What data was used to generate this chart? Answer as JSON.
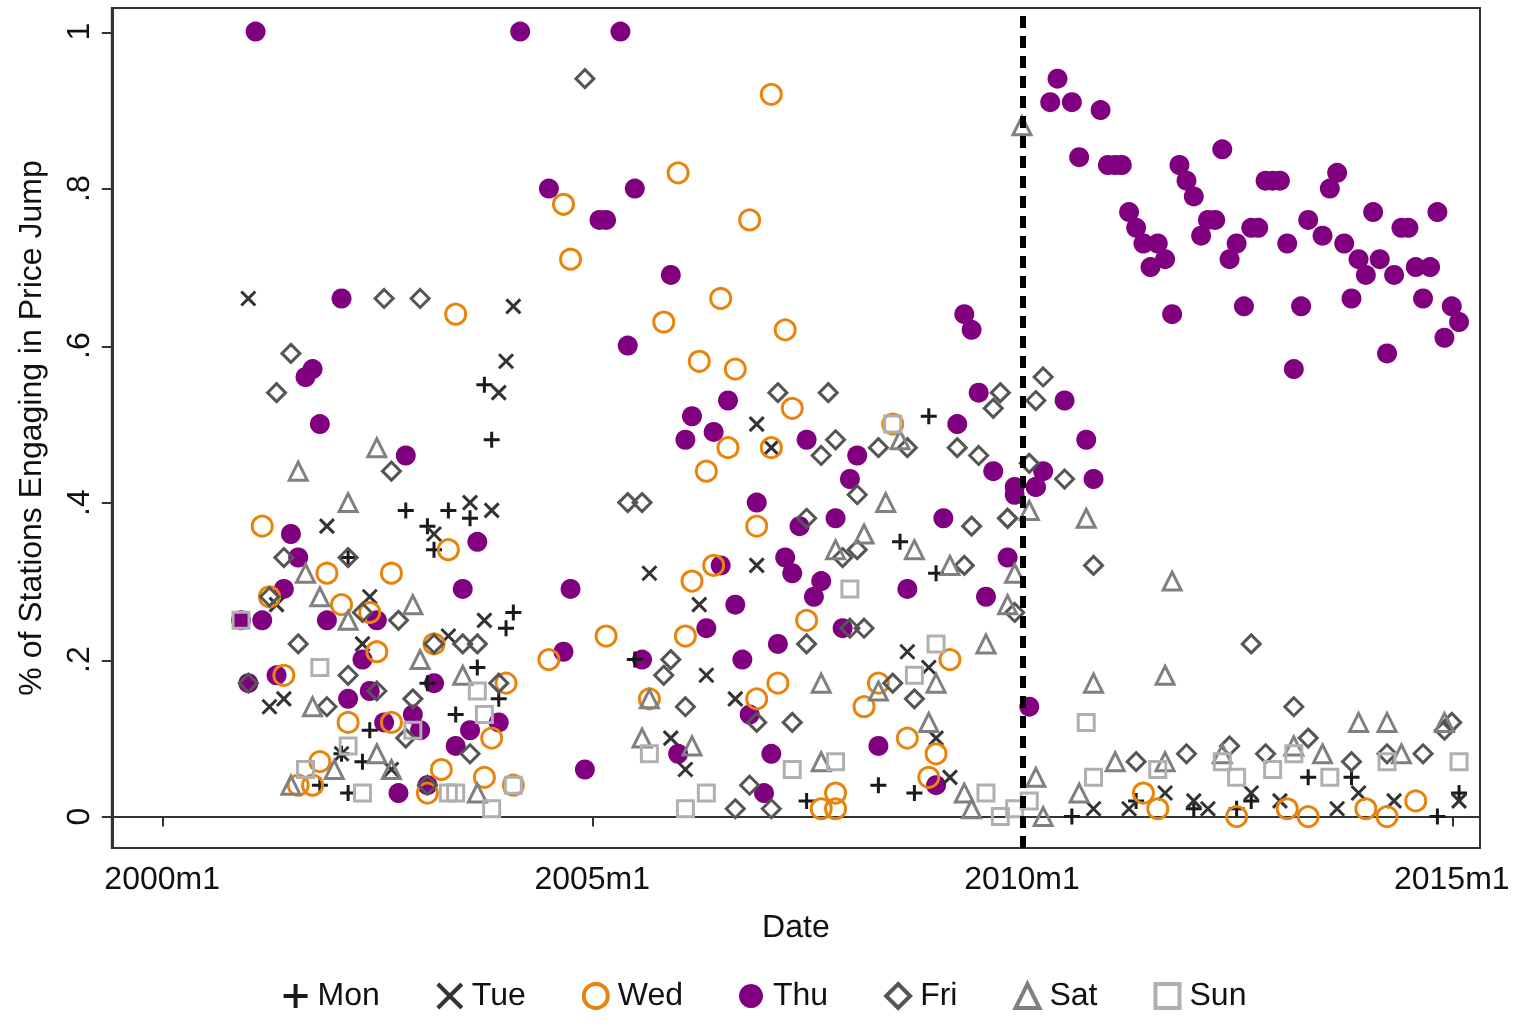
{
  "chart_data": {
    "type": "scatter",
    "xlabel": "Date",
    "ylabel": "% of Stations Engaging in Price Jump",
    "xlim": [
      "1999-06",
      "2015-05"
    ],
    "ylim": [
      -0.04,
      1.03
    ],
    "xticks": [
      {
        "value": "2000-01",
        "label": "2000m1"
      },
      {
        "value": "2005-01",
        "label": "2005m1"
      },
      {
        "value": "2010-01",
        "label": "2010m1"
      },
      {
        "value": "2015-01",
        "label": "2015m1"
      }
    ],
    "yticks": [
      0,
      {
        "value": 0.2,
        "label": ".2"
      },
      {
        "value": 0.4,
        "label": ".4"
      },
      {
        "value": 0.6,
        "label": ".6"
      },
      {
        "value": 0.8,
        "label": ".8"
      },
      1
    ],
    "grid": false,
    "legend": "bottom",
    "ref_lines": [
      {
        "axis": "x",
        "value": "2010-01",
        "color": "#000000",
        "line_style": "dashed"
      }
    ],
    "series": [
      {
        "name": "Mon",
        "color": "#1a1a1a",
        "marker": "plus",
        "x": [
          "2003-10",
          "2003-11",
          "2002-11",
          "2003-05",
          "2003-08",
          "2003-02",
          "2003-03",
          "2004-02",
          "2004-01",
          "2003-09",
          "2003-02",
          "2003-12",
          "2003-06",
          "2002-06",
          "2002-05",
          "2002-02",
          "2001-11",
          "2002-03",
          "2002-03",
          "2008-12",
          "2008-08",
          "2009-01",
          "2008-05",
          "2008-10",
          "2007-07",
          "2005-07",
          "2010-08",
          "2012-01",
          "2012-09",
          "2013-11",
          "2014-11",
          "2015-02",
          "2013-05",
          "2011-05",
          "2012-07"
        ],
        "values": [
          0.55,
          0.48,
          0.39,
          0.39,
          0.38,
          0.37,
          0.34,
          0.26,
          0.24,
          0.19,
          0.17,
          0.15,
          0.13,
          0.11,
          0.07,
          0.08,
          0.04,
          0.03,
          0.33,
          0.51,
          0.35,
          0.31,
          0.04,
          0.03,
          0.02,
          0.2,
          0.0,
          0.01,
          0.02,
          0.05,
          0.0,
          0.03,
          0.05,
          0.02,
          0.01
        ]
      },
      {
        "name": "Tue",
        "color": "#333333",
        "marker": "cross",
        "x": [
          "2001-01",
          "2004-02",
          "2004-01",
          "2003-12",
          "2003-08",
          "2003-11",
          "2001-12",
          "2003-03",
          "2002-06",
          "2001-05",
          "2003-10",
          "2003-05",
          "2002-05",
          "2001-04",
          "2001-06",
          "2002-09",
          "2002-02",
          "2006-12",
          "2007-02",
          "2005-09",
          "2006-12",
          "2006-04",
          "2006-05",
          "2006-09",
          "2005-12",
          "2006-02",
          "2008-09",
          "2008-12",
          "2009-01",
          "2009-03",
          "2010-11",
          "2011-04",
          "2012-01",
          "2012-03",
          "2013-01",
          "2013-09",
          "2013-12",
          "2014-05",
          "2015-02",
          "2011-09",
          "2012-09"
        ],
        "values": [
          0.66,
          0.65,
          0.58,
          0.54,
          0.4,
          0.39,
          0.37,
          0.36,
          0.28,
          0.27,
          0.25,
          0.23,
          0.22,
          0.14,
          0.15,
          0.06,
          0.08,
          0.5,
          0.47,
          0.31,
          0.32,
          0.27,
          0.18,
          0.15,
          0.1,
          0.06,
          0.21,
          0.19,
          0.1,
          0.05,
          0.01,
          0.01,
          0.02,
          0.01,
          0.02,
          0.01,
          0.03,
          0.02,
          0.02,
          0.03,
          0.03
        ]
      },
      {
        "name": "Wed",
        "color": "#e8830c",
        "marker": "circle-open",
        "x": [
          "2004-09",
          "2004-10",
          "2003-06",
          "2001-03",
          "2003-05",
          "2001-12",
          "2002-09",
          "2001-04",
          "2002-02",
          "2002-06",
          "2003-03",
          "2002-07",
          "2001-06",
          "2004-07",
          "2004-01",
          "2002-03",
          "2002-09",
          "2003-11",
          "2003-04",
          "2003-10",
          "2004-02",
          "2001-08",
          "2001-11",
          "2001-10",
          "2003-02",
          "2007-02",
          "2006-01",
          "2006-11",
          "2006-07",
          "2005-11",
          "2007-04",
          "2006-04",
          "2006-09",
          "2007-05",
          "2008-07",
          "2006-08",
          "2007-02",
          "2006-05",
          "2006-12",
          "2006-03",
          "2006-06",
          "2007-07",
          "2006-02",
          "2005-03",
          "2009-03",
          "2008-05",
          "2007-03",
          "2006-12",
          "2008-03",
          "2008-09",
          "2009-01",
          "2008-12",
          "2007-11",
          "2007-09",
          "2007-11",
          "2005-09",
          "2011-06",
          "2011-08",
          "2012-07",
          "2013-02",
          "2013-05",
          "2014-01",
          "2014-04",
          "2014-08"
        ],
        "values": [
          0.78,
          0.71,
          0.64,
          0.37,
          0.34,
          0.31,
          0.31,
          0.28,
          0.27,
          0.26,
          0.22,
          0.21,
          0.18,
          0.2,
          0.17,
          0.12,
          0.12,
          0.1,
          0.06,
          0.05,
          0.04,
          0.04,
          0.07,
          0.04,
          0.03,
          0.92,
          0.82,
          0.76,
          0.66,
          0.63,
          0.62,
          0.58,
          0.57,
          0.52,
          0.5,
          0.47,
          0.47,
          0.44,
          0.37,
          0.3,
          0.32,
          0.25,
          0.23,
          0.23,
          0.2,
          0.17,
          0.17,
          0.15,
          0.14,
          0.1,
          0.08,
          0.05,
          0.03,
          0.01,
          0.01,
          0.15,
          0.03,
          0.01,
          0.0,
          0.01,
          0.0,
          0.01,
          0.0,
          0.02
        ]
      },
      {
        "name": "Thu",
        "color": "#800080",
        "marker": "circle",
        "x": [
          "2001-02",
          "2004-03",
          "2005-05",
          "2004-07",
          "2005-02",
          "2005-07",
          "2005-03",
          "2005-12",
          "2005-06",
          "2006-08",
          "2006-03",
          "2006-02",
          "2006-06",
          "2007-07",
          "2008-02",
          "2008-01",
          "2006-12",
          "2007-11",
          "2007-06",
          "2007-04",
          "2006-07",
          "2007-05",
          "2007-09",
          "2007-08",
          "2006-09",
          "2006-05",
          "2007-12",
          "2007-03",
          "2006-10",
          "2005-08",
          "2006-11",
          "2006-01",
          "2007-02",
          "2008-05",
          "2007-01",
          "2009-01",
          "2008-09",
          "2009-02",
          "2009-08",
          "2009-11",
          "2009-04",
          "2009-07",
          "2009-05",
          "2009-06",
          "2009-09",
          "2009-12",
          "2010-03",
          "2004-12",
          "2010-02",
          "2002-02",
          "2001-09",
          "2001-10",
          "2001-11",
          "2002-11",
          "2001-07",
          "2001-08",
          "2003-09",
          "2001-06",
          "2003-07",
          "2004-10",
          "2001-03",
          "2001-12",
          "2002-07",
          "2004-09",
          "2002-05",
          "2001-05",
          "2003-03",
          "2002-03",
          "2002-06",
          "2002-08",
          "2002-12",
          "2003-01",
          "2003-12",
          "2003-06",
          "2003-08",
          "2002-10",
          "2003-02",
          "2001-01",
          "2000-12",
          "2010-06",
          "2010-05",
          "2010-08",
          "2010-12",
          "2010-09",
          "2011-01",
          "2011-02",
          "2011-03",
          "2011-04",
          "2011-05",
          "2011-06",
          "2011-08",
          "2011-07",
          "2011-09",
          "2011-10",
          "2011-11",
          "2011-12",
          "2012-01",
          "2012-02",
          "2012-03",
          "2012-04",
          "2012-05",
          "2012-06",
          "2012-07",
          "2012-08",
          "2012-09",
          "2012-10",
          "2012-11",
          "2012-12",
          "2013-01",
          "2013-02",
          "2013-03",
          "2013-04",
          "2013-05",
          "2013-07",
          "2013-08",
          "2013-09",
          "2013-10",
          "2013-11",
          "2013-12",
          "2014-01",
          "2014-02",
          "2014-03",
          "2014-04",
          "2014-05",
          "2014-06",
          "2014-07",
          "2014-08",
          "2014-09",
          "2014-10",
          "2014-11",
          "2014-12",
          "2015-01",
          "2015-02",
          "2010-07",
          "2010-10",
          "2010-11",
          "2010-04",
          "2010-03",
          "2009-12"
        ],
        "values": [
          1,
          1,
          1,
          0.8,
          0.76,
          0.8,
          0.76,
          0.69,
          0.6,
          0.53,
          0.51,
          0.48,
          0.49,
          0.48,
          0.46,
          0.43,
          0.4,
          0.38,
          0.37,
          0.33,
          0.32,
          0.31,
          0.3,
          0.28,
          0.27,
          0.24,
          0.24,
          0.22,
          0.2,
          0.2,
          0.13,
          0.08,
          0.08,
          0.09,
          0.03,
          0.04,
          0.29,
          0.38,
          0.28,
          0.33,
          0.5,
          0.54,
          0.64,
          0.62,
          0.44,
          0.42,
          0.42,
          0.06,
          0.14,
          0.66,
          0.56,
          0.57,
          0.5,
          0.46,
          0.36,
          0.33,
          0.35,
          0.29,
          0.29,
          0.29,
          0.25,
          0.25,
          0.25,
          0.21,
          0.2,
          0.18,
          0.17,
          0.15,
          0.16,
          0.12,
          0.13,
          0.11,
          0.12,
          0.09,
          0.11,
          0.03,
          0.04,
          0.17,
          0.25,
          0.94,
          0.91,
          0.91,
          0.9,
          0.84,
          0.83,
          0.83,
          0.83,
          0.77,
          0.75,
          0.73,
          0.73,
          0.7,
          0.71,
          0.64,
          0.83,
          0.81,
          0.79,
          0.74,
          0.76,
          0.76,
          0.85,
          0.71,
          0.73,
          0.65,
          0.75,
          0.75,
          0.81,
          0.81,
          0.81,
          0.73,
          0.57,
          0.65,
          0.76,
          0.74,
          0.8,
          0.82,
          0.73,
          0.66,
          0.71,
          0.69,
          0.77,
          0.71,
          0.59,
          0.69,
          0.75,
          0.75,
          0.7,
          0.66,
          0.7,
          0.77,
          0.61,
          0.65,
          0.63,
          0.53,
          0.48,
          0.43,
          0.44,
          0.42,
          0.41
        ]
      },
      {
        "name": "Fri",
        "color": "#555555",
        "marker": "diamond-open",
        "x": [
          "2004-12",
          "2002-08",
          "2003-01",
          "2001-07",
          "2001-05",
          "2002-09",
          "2001-06",
          "2002-03",
          "2001-04",
          "2002-05",
          "2002-10",
          "2001-08",
          "2003-03",
          "2003-07",
          "2003-09",
          "2002-03",
          "2001-01",
          "2002-07",
          "2002-12",
          "2003-12",
          "2001-12",
          "2002-11",
          "2003-08",
          "2003-02",
          "2007-03",
          "2007-10",
          "2005-06",
          "2005-08",
          "2007-09",
          "2007-11",
          "2008-05",
          "2008-09",
          "2009-04",
          "2009-07",
          "2009-09",
          "2009-10",
          "2008-02",
          "2007-07",
          "2008-02",
          "2007-12",
          "2009-06",
          "2009-05",
          "2009-11",
          "2007-07",
          "2008-03",
          "2008-01",
          "2005-12",
          "2005-11",
          "2006-02",
          "2006-12",
          "2007-05",
          "2008-07",
          "2008-10",
          "2006-11",
          "2006-09",
          "2007-02",
          "2009-12",
          "2010-04",
          "2010-03",
          "2010-02",
          "2010-07",
          "2009-11",
          "2010-11",
          "2012-09",
          "2013-03",
          "2013-05",
          "2012-06",
          "2012-11",
          "2014-04",
          "2015-01",
          "2014-12",
          "2014-09",
          "2011-12",
          "2011-05",
          "2013-11"
        ],
        "values": [
          0.94,
          0.66,
          0.66,
          0.59,
          0.54,
          0.44,
          0.33,
          0.33,
          0.28,
          0.26,
          0.25,
          0.22,
          0.22,
          0.22,
          0.22,
          0.18,
          0.17,
          0.16,
          0.15,
          0.17,
          0.14,
          0.1,
          0.08,
          0.04,
          0.54,
          0.54,
          0.4,
          0.4,
          0.46,
          0.48,
          0.47,
          0.47,
          0.47,
          0.46,
          0.52,
          0.54,
          0.41,
          0.38,
          0.34,
          0.33,
          0.37,
          0.32,
          0.38,
          0.22,
          0.24,
          0.24,
          0.2,
          0.18,
          0.14,
          0.12,
          0.12,
          0.17,
          0.15,
          0.04,
          0.01,
          0.01,
          0.26,
          0.56,
          0.53,
          0.45,
          0.43,
          0.38,
          0.32,
          0.22,
          0.14,
          0.1,
          0.09,
          0.08,
          0.08,
          0.12,
          0.11,
          0.08,
          0.08,
          0.07,
          0.07
        ]
      },
      {
        "name": "Sat",
        "color": "#808080",
        "marker": "triangle-open",
        "x": [
          "2002-07",
          "2001-08",
          "2002-03",
          "2001-09",
          "2001-11",
          "2002-12",
          "2002-03",
          "2003-01",
          "2003-07",
          "2001-10",
          "2002-07",
          "2002-09",
          "2001-07",
          "2003-09",
          "2002-01",
          "2008-06",
          "2008-03",
          "2007-11",
          "2008-10",
          "2009-03",
          "2009-12",
          "2009-11",
          "2009-08",
          "2009-01",
          "2007-09",
          "2008-05",
          "2005-09",
          "2008-12",
          "2007-09",
          "2009-05",
          "2009-06",
          "2006-03",
          "2005-08",
          "2010-01",
          "2008-08",
          "2010-02",
          "2010-10",
          "2011-10",
          "2011-09",
          "2010-11",
          "2013-12",
          "2014-04",
          "2014-12",
          "2013-03",
          "2012-05",
          "2011-02",
          "2010-03",
          "2010-04",
          "2011-09",
          "2014-06",
          "2013-07",
          "2010-09"
        ],
        "values": [
          0.47,
          0.44,
          0.4,
          0.31,
          0.28,
          0.27,
          0.25,
          0.2,
          0.18,
          0.14,
          0.08,
          0.06,
          0.04,
          0.03,
          0.06,
          0.4,
          0.36,
          0.34,
          0.34,
          0.32,
          0.31,
          0.27,
          0.22,
          0.17,
          0.17,
          0.16,
          0.15,
          0.12,
          0.07,
          0.03,
          0.01,
          0.09,
          0.1,
          0.88,
          0.48,
          0.39,
          0.38,
          0.3,
          0.18,
          0.17,
          0.12,
          0.12,
          0.12,
          0.09,
          0.08,
          0.07,
          0.05,
          0.0,
          0.07,
          0.08,
          0.08,
          0.03
        ]
      },
      {
        "name": "Sun",
        "color": "#b0b0b0",
        "marker": "square-open",
        "x": [
          "2001-11",
          "2003-09",
          "2003-10",
          "2000-12",
          "2002-03",
          "2002-12",
          "2001-09",
          "2002-05",
          "2003-05",
          "2004-02",
          "2003-11",
          "2003-06",
          "2008-07",
          "2008-01",
          "2009-01",
          "2008-10",
          "2005-09",
          "2007-05",
          "2007-11",
          "2009-08",
          "2009-10",
          "2006-05",
          "2006-02",
          "2010-10",
          "2010-02",
          "2009-12",
          "2010-11",
          "2011-08",
          "2012-05",
          "2012-12",
          "2013-08",
          "2014-04",
          "2015-02",
          "2013-03",
          "2012-07"
        ],
        "values": [
          0.19,
          0.16,
          0.13,
          0.25,
          0.09,
          0.11,
          0.06,
          0.03,
          0.03,
          0.04,
          0.01,
          0.03,
          0.5,
          0.29,
          0.22,
          0.18,
          0.08,
          0.06,
          0.07,
          0.03,
          0.0,
          0.03,
          0.01,
          0.12,
          0.02,
          0.01,
          0.05,
          0.06,
          0.07,
          0.06,
          0.05,
          0.07,
          0.07,
          0.08,
          0.05
        ]
      }
    ]
  }
}
